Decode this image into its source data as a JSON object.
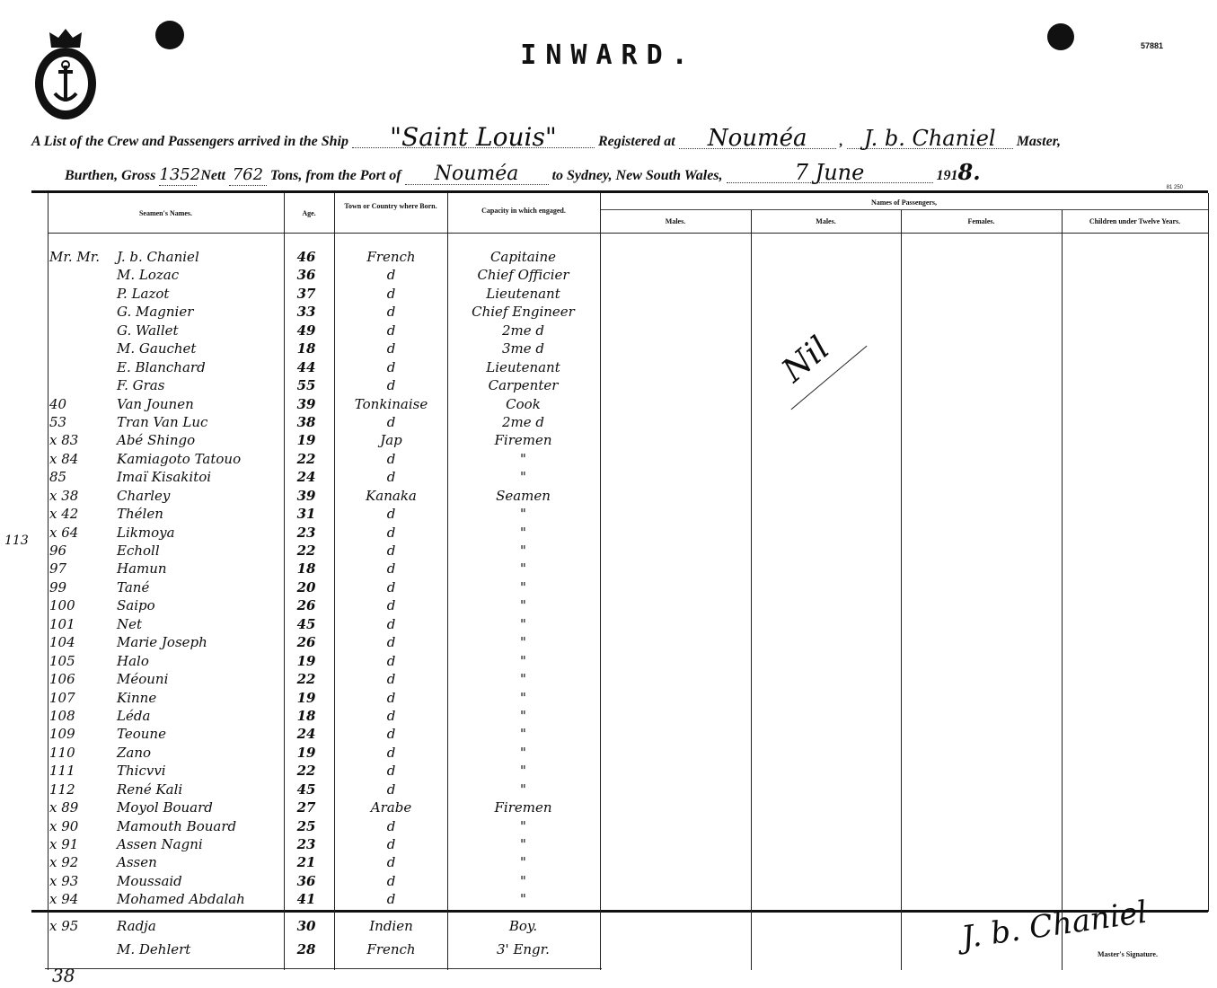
{
  "header": {
    "title": "INWARD.",
    "form_number": "57881",
    "print_code": "81 250",
    "line1": {
      "prefix": "A List of the Crew and Passengers arrived in the Ship",
      "ship": "\"Saint Louis\"",
      "registered_label": "Registered at",
      "registered_port": "Nouméa",
      "master_name": "J. b. Chaniel",
      "master_label": "Master,"
    },
    "line2": {
      "burthen_label": "Burthen, Gross",
      "gross": "1352",
      "nett_label": "Nett",
      "nett": "762",
      "tons_label": "Tons, from the Port of",
      "from_port": "Nouméa",
      "to_label": "to Sydney, New South Wales,",
      "date": "7 June",
      "year_prefix": "191",
      "year_suffix": "8."
    }
  },
  "columns": {
    "names": "Seamen's Names.",
    "age": "Age.",
    "born": "Town or Country where Born.",
    "capacity": "Capacity in which engaged.",
    "passengers": "Names of Passengers,",
    "males1": "Males.",
    "males2": "Males.",
    "females": "Females.",
    "children": "Children under Twelve Years."
  },
  "crew": [
    {
      "no": "Mr. Mr.",
      "name": "J. b. Chaniel",
      "age": "46",
      "born": "French",
      "capacity": "Capitaine"
    },
    {
      "no": "",
      "name": "M. Lozac",
      "age": "36",
      "born": "d",
      "capacity": "Chief Officier"
    },
    {
      "no": "",
      "name": "P. Lazot",
      "age": "37",
      "born": "d",
      "capacity": "Lieutenant"
    },
    {
      "no": "",
      "name": "G. Magnier",
      "age": "33",
      "born": "d",
      "capacity": "Chief Engineer"
    },
    {
      "no": "",
      "name": "G. Wallet",
      "age": "49",
      "born": "d",
      "capacity": "2me d"
    },
    {
      "no": "",
      "name": "M. Gauchet",
      "age": "18",
      "born": "d",
      "capacity": "3me d"
    },
    {
      "no": "",
      "name": "E. Blanchard",
      "age": "44",
      "born": "d",
      "capacity": "Lieutenant"
    },
    {
      "no": "",
      "name": "F. Gras",
      "age": "55",
      "born": "d",
      "capacity": "Carpenter"
    },
    {
      "no": "40",
      "name": "Van Jounen",
      "age": "39",
      "born": "Tonkinaise",
      "capacity": "Cook"
    },
    {
      "no": "53",
      "name": "Tran Van Luc",
      "age": "38",
      "born": "d",
      "capacity": "2me d"
    },
    {
      "no": "x 83",
      "name": "Abé Shingo",
      "age": "19",
      "born": "Jap",
      "capacity": "Firemen"
    },
    {
      "no": "x 84",
      "name": "Kamiagoto Tatouo",
      "age": "22",
      "born": "d",
      "capacity": "\""
    },
    {
      "no": "85",
      "name": "Imaï Kisakitoi",
      "age": "24",
      "born": "d",
      "capacity": "\""
    },
    {
      "no": "x 38",
      "name": "Charley",
      "age": "39",
      "born": "Kanaka",
      "capacity": "Seamen"
    },
    {
      "no": "x 42",
      "name": "Thélen",
      "age": "31",
      "born": "d",
      "capacity": "\""
    },
    {
      "no": "x 64",
      "name": "Likmoya",
      "age": "23",
      "born": "d",
      "capacity": "\""
    },
    {
      "no": "96",
      "name": "Echoll",
      "age": "22",
      "born": "d",
      "capacity": "\""
    },
    {
      "no": "97",
      "name": "Hamun",
      "age": "18",
      "born": "d",
      "capacity": "\""
    },
    {
      "no": "99",
      "name": "Tané",
      "age": "20",
      "born": "d",
      "capacity": "\""
    },
    {
      "no": "100",
      "name": "Saipo",
      "age": "26",
      "born": "d",
      "capacity": "\""
    },
    {
      "no": "101",
      "name": "Net",
      "age": "45",
      "born": "d",
      "capacity": "\""
    },
    {
      "no": "104",
      "name": "Marie Joseph",
      "age": "26",
      "born": "d",
      "capacity": "\""
    },
    {
      "no": "105",
      "name": "Halo",
      "age": "19",
      "born": "d",
      "capacity": "\""
    },
    {
      "no": "106",
      "name": "Méouni",
      "age": "22",
      "born": "d",
      "capacity": "\""
    },
    {
      "no": "107",
      "name": "Kinne",
      "age": "19",
      "born": "d",
      "capacity": "\""
    },
    {
      "no": "108",
      "name": "Léda",
      "age": "18",
      "born": "d",
      "capacity": "\""
    },
    {
      "no": "109",
      "name": "Teoune",
      "age": "24",
      "born": "d",
      "capacity": "\""
    },
    {
      "no": "110",
      "name": "Zano",
      "age": "19",
      "born": "d",
      "capacity": "\""
    },
    {
      "no": "111",
      "name": "Thicvvi",
      "age": "22",
      "born": "d",
      "capacity": "\""
    },
    {
      "no": "112",
      "name": "René Kali",
      "age": "45",
      "born": "d",
      "capacity": "\""
    },
    {
      "no": "x 89",
      "name": "Moyol Bouard",
      "age": "27",
      "born": "Arabe",
      "capacity": "Firemen"
    },
    {
      "no": "x 90",
      "name": "Mamouth Bouard",
      "age": "25",
      "born": "d",
      "capacity": "\""
    },
    {
      "no": "x 91",
      "name": "Assen Nagni",
      "age": "23",
      "born": "d",
      "capacity": "\""
    },
    {
      "no": "x 92",
      "name": "Assen",
      "age": "21",
      "born": "d",
      "capacity": "\""
    },
    {
      "no": "x 93",
      "name": "Moussaid",
      "age": "36",
      "born": "d",
      "capacity": "\""
    },
    {
      "no": "x 94",
      "name": "Mohamed Abdalah",
      "age": "41",
      "born": "d",
      "capacity": "\""
    }
  ],
  "extra_crew": [
    {
      "no": "x 95",
      "name": "Radja",
      "age": "30",
      "born": "Indien",
      "capacity": "Boy."
    },
    {
      "no": "",
      "name": "M. Dehlert",
      "age": "28",
      "born": "French",
      "capacity": "3' Engr."
    }
  ],
  "passengers_note": "Nil",
  "signature": "J. b. Chaniel",
  "signature_label": "Master's Signature.",
  "margin_notes": {
    "left_113": "113",
    "bottom_38": "38"
  }
}
